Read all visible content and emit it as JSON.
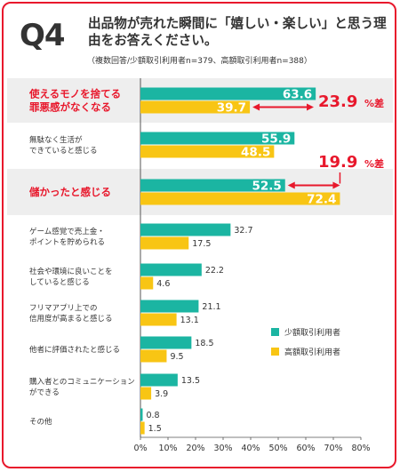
{
  "header": {
    "q_label": "Q4",
    "title": "出品物が売れた瞬間に「嬉しい・楽しい」と思う理由をお答えください。",
    "subtitle": "（複数回答/少額取引利用者n=379、高額取引利用者n=388）"
  },
  "chart_data": {
    "type": "bar",
    "orientation": "horizontal",
    "categories": [
      "使えるモノを捨てる罪悪感がなくなる",
      "無駄なく生活ができていると感じる",
      "儲かったと感じる",
      "ゲーム感覚で売上金・ポイントを貯められる",
      "社会や環境に良いことをしていると感じる",
      "フリマアプリ上での信用度が高まると感じる",
      "他者に評価されたと感じる",
      "購入者とのコミュニケーションができる",
      "その他"
    ],
    "series": [
      {
        "name": "少額取引利用者",
        "color": "#1bb5a2",
        "values": [
          63.6,
          55.9,
          52.5,
          32.7,
          22.2,
          21.1,
          18.5,
          13.5,
          0.8
        ]
      },
      {
        "name": "高額取引利用者",
        "color": "#f8c514",
        "values": [
          39.7,
          48.5,
          72.4,
          17.5,
          4.6,
          13.1,
          9.5,
          3.9,
          1.5
        ]
      }
    ],
    "xlim": [
      0,
      80
    ],
    "x_ticks": [
      "0%",
      "10%",
      "20%",
      "30%",
      "40%",
      "50%",
      "60%",
      "70%",
      "80%"
    ],
    "legend_position": "right",
    "highlighted_categories": [
      0,
      2
    ],
    "annotations": [
      {
        "category": 0,
        "value": "23.9",
        "unit": "%差"
      },
      {
        "category": 2,
        "value": "19.9",
        "unit": "%差"
      }
    ],
    "accent_color": "#e8182c"
  }
}
